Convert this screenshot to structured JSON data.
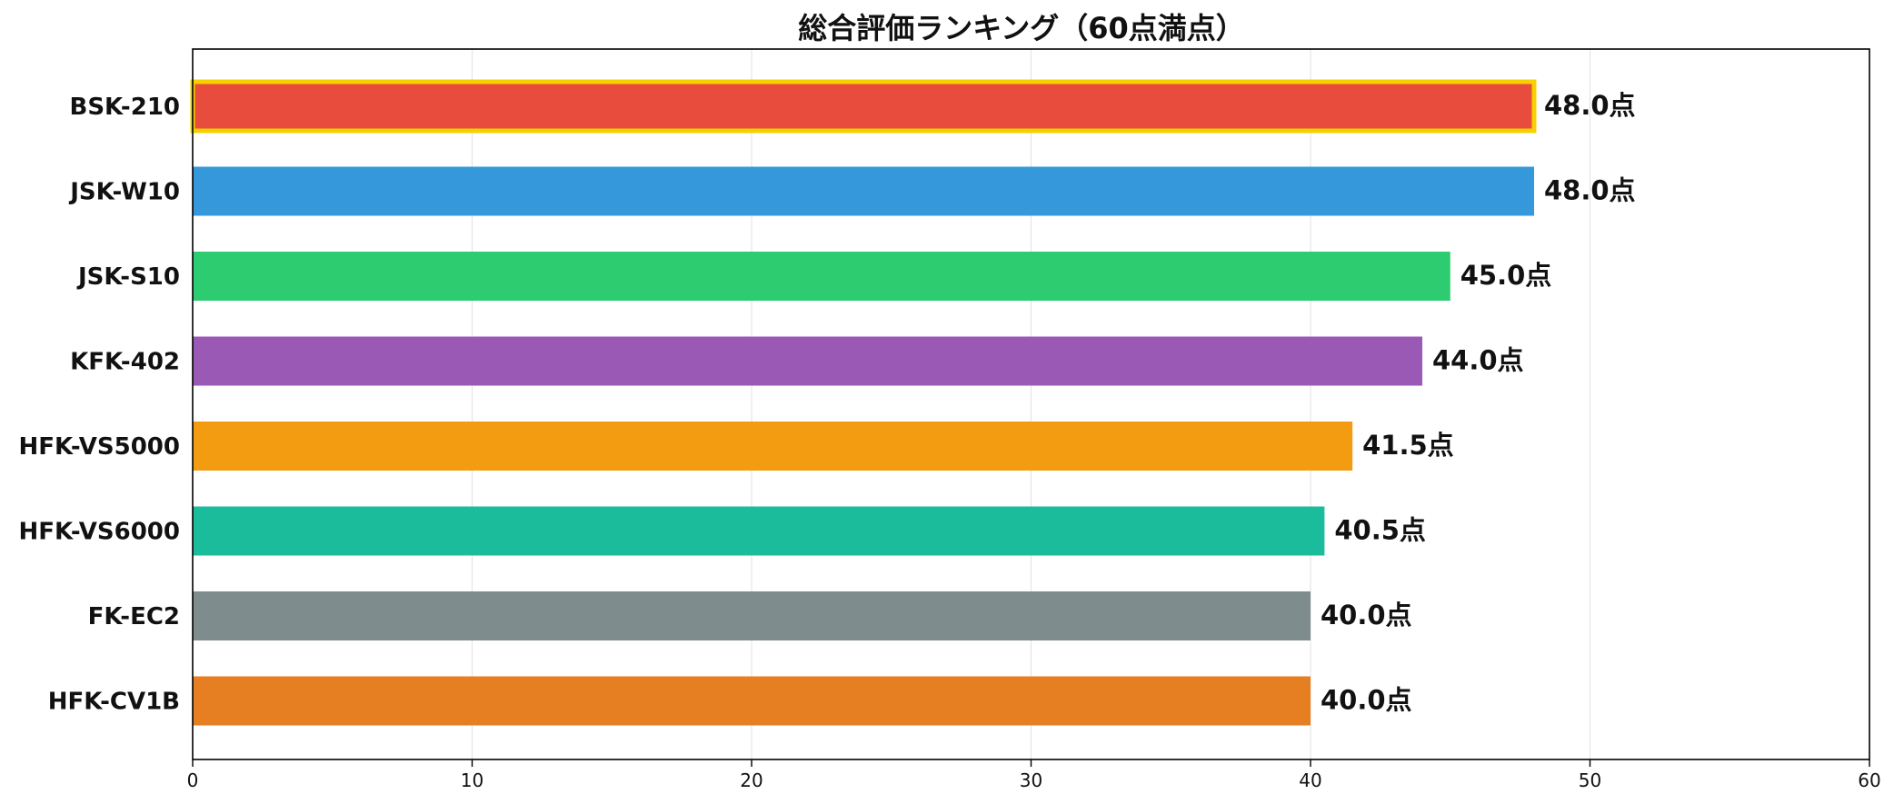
{
  "chart_data": {
    "type": "bar",
    "orientation": "horizontal",
    "title": "総合評価ランキング（60点満点）",
    "xlabel": "",
    "ylabel": "",
    "xlim": [
      0,
      60
    ],
    "x_ticks": [
      0,
      10,
      20,
      30,
      40,
      50,
      60
    ],
    "grid": "vertical",
    "value_suffix": "点",
    "categories": [
      "BSK-210",
      "JSK-W10",
      "JSK-S10",
      "KFK-402",
      "HFK-VS5000",
      "HFK-VS6000",
      "FK-EC2",
      "HFK-CV1B"
    ],
    "values": [
      48.0,
      48.0,
      45.0,
      44.0,
      41.5,
      40.5,
      40.0,
      40.0
    ],
    "value_labels": [
      "48.0点",
      "48.0点",
      "45.0点",
      "44.0点",
      "41.5点",
      "40.5点",
      "40.0点",
      "40.0点"
    ],
    "colors": [
      "#e74c3c",
      "#3498db",
      "#2ecc71",
      "#9b59b6",
      "#f39c12",
      "#1abc9c",
      "#7f8c8d",
      "#e67e22"
    ],
    "highlight": {
      "category": "BSK-210",
      "outline_color": "#f7d000"
    }
  }
}
